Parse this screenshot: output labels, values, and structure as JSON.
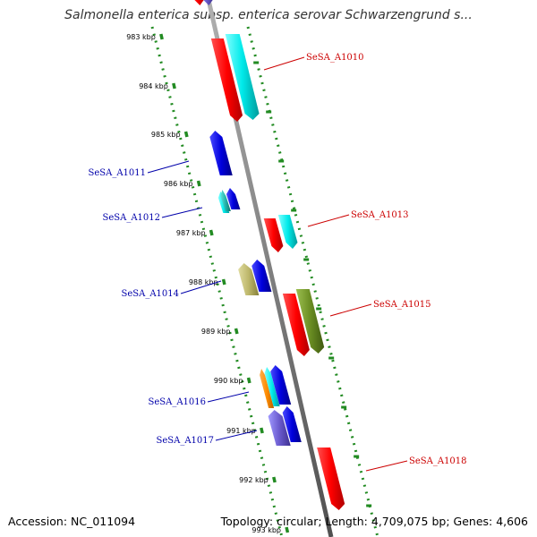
{
  "title": "Salmonella enterica subsp. enterica serovar Schwarzengrund s...",
  "footer": {
    "accession": "Accession: NC_011094",
    "summary": "Topology: circular; Length: 4,709,075 bp; Genes: 4,606"
  },
  "ticks": [
    "983 kbp",
    "984 kbp",
    "985 kbp",
    "986 kbp",
    "987 kbp",
    "988 kbp",
    "989 kbp",
    "990 kbp",
    "991 kbp",
    "992 kbp",
    "993 kbp"
  ],
  "labels": {
    "forward": [
      "SeSA_A1010",
      "SeSA_A1013",
      "SeSA_A1015",
      "SeSA_A1018"
    ],
    "reverse": [
      "SeSA_A1011",
      "SeSA_A1012",
      "SeSA_A1014",
      "SeSA_A1016",
      "SeSA_A1017"
    ]
  },
  "colors": {
    "red": "#ff0000",
    "cyan": "#00e0e0",
    "blue": "#0000dd",
    "olive": "#6b8e23",
    "khaki": "#bdb76b",
    "orange": "#ff8c00",
    "slate": "#6a5acd",
    "teal": "#20b2aa",
    "forward_label": "#cc0000",
    "reverse_label": "#0000aa",
    "tick": "#228b22",
    "backbone": "#808080"
  }
}
